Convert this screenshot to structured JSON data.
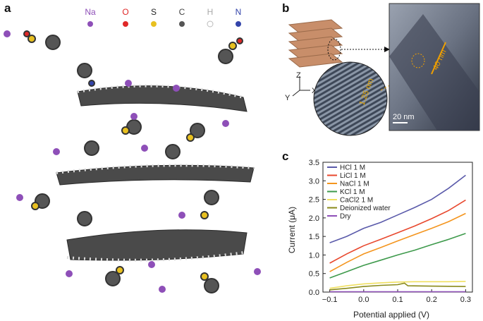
{
  "panels": {
    "a": "a",
    "b": "b",
    "c": "c"
  },
  "molecule_legend": [
    {
      "symbol": "Na",
      "color": "#8e4fb8"
    },
    {
      "symbol": "O",
      "color": "#e02828"
    },
    {
      "symbol": "S",
      "color": "#e8c020"
    },
    {
      "symbol": "C",
      "color": "#555555"
    },
    {
      "symbol": "H",
      "color": "#cccccc"
    },
    {
      "symbol": "N",
      "color": "#3344aa"
    }
  ],
  "microscopy": {
    "axis_z": "Z",
    "axis_y": "Y",
    "axis_x": "X",
    "thickness_label": "40 nm",
    "spacing_label": "1.25 nm",
    "scale_bar": "20 nm"
  },
  "chart_data": {
    "type": "line",
    "xlabel": "Potential applied (V)",
    "ylabel": "Current (μA)",
    "xlim": [
      -0.12,
      0.32
    ],
    "ylim": [
      0,
      3.5
    ],
    "xticks": [
      "-0.1",
      "0.0",
      "0.1",
      "0.2",
      "0.3"
    ],
    "xtick_values": [
      -0.1,
      0.0,
      0.1,
      0.2,
      0.3
    ],
    "yticks": [
      "0.0",
      "0.5",
      "1.0",
      "1.5",
      "2.0",
      "2.5",
      "3.0",
      "3.5"
    ],
    "ytick_values": [
      0,
      0.5,
      1.0,
      1.5,
      2.0,
      2.5,
      3.0,
      3.5
    ],
    "legend_position": "top-left",
    "grid": false,
    "series": [
      {
        "name": "HCl 1 M",
        "color": "#5a5aaa",
        "x": [
          -0.1,
          -0.05,
          0.0,
          0.05,
          0.1,
          0.15,
          0.2,
          0.25,
          0.3
        ],
        "y": [
          1.33,
          1.5,
          1.72,
          1.88,
          2.08,
          2.28,
          2.5,
          2.8,
          3.15
        ]
      },
      {
        "name": "LiCl 1 M",
        "color": "#e8482e",
        "x": [
          -0.1,
          -0.05,
          0.0,
          0.05,
          0.1,
          0.15,
          0.2,
          0.25,
          0.3
        ],
        "y": [
          0.78,
          1.03,
          1.25,
          1.42,
          1.6,
          1.78,
          1.98,
          2.2,
          2.48
        ]
      },
      {
        "name": "NaCl 1 M",
        "color": "#f4951e",
        "x": [
          -0.1,
          -0.05,
          0.0,
          0.05,
          0.1,
          0.15,
          0.2,
          0.25,
          0.3
        ],
        "y": [
          0.55,
          0.8,
          1.03,
          1.2,
          1.38,
          1.55,
          1.72,
          1.9,
          2.12
        ]
      },
      {
        "name": "KCl 1 M",
        "color": "#3e9a4c",
        "x": [
          -0.1,
          -0.05,
          0.0,
          0.05,
          0.1,
          0.15,
          0.2,
          0.25,
          0.3
        ],
        "y": [
          0.38,
          0.55,
          0.72,
          0.86,
          1.0,
          1.13,
          1.28,
          1.42,
          1.58
        ]
      },
      {
        "name": "CaCl2 1 M",
        "color": "#f0e060",
        "x": [
          -0.1,
          -0.05,
          0.0,
          0.05,
          0.1,
          0.15,
          0.2,
          0.25,
          0.3
        ],
        "y": [
          0.1,
          0.17,
          0.22,
          0.25,
          0.27,
          0.28,
          0.28,
          0.28,
          0.29
        ]
      },
      {
        "name": "Deionized water",
        "color": "#8a8a1a",
        "x": [
          -0.1,
          -0.05,
          0.0,
          0.05,
          0.1,
          0.12,
          0.13,
          0.2,
          0.3
        ],
        "y": [
          0.06,
          0.1,
          0.15,
          0.18,
          0.2,
          0.24,
          0.17,
          0.16,
          0.15
        ]
      },
      {
        "name": "Dry",
        "color": "#8e4fb8",
        "x": [
          -0.1,
          0.0,
          0.1,
          0.2,
          0.3
        ],
        "y": [
          0.01,
          0.01,
          0.01,
          0.01,
          0.01
        ]
      }
    ]
  }
}
